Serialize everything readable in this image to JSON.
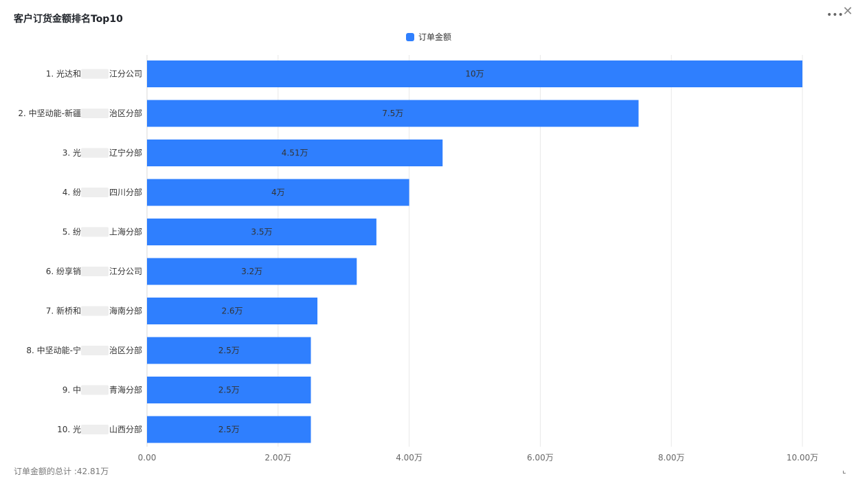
{
  "header": {
    "title": "客户订货金额排名Top10",
    "more_icon": "more-horizontal-icon",
    "close_icon": "close-icon"
  },
  "legend": {
    "label": "订单金额",
    "color": "#2f7ffe"
  },
  "footer": {
    "total_text": "订单金额的总计 :42.81万",
    "expand_icon": "expand-icon"
  },
  "colors": {
    "bar": "#2f7ffe",
    "grid": "#e8e8e8",
    "axis_text": "#666666"
  },
  "chart_data": {
    "type": "bar",
    "orientation": "horizontal",
    "title": "客户订货金额排名Top10",
    "series": [
      {
        "name": "订单金额",
        "values": [
          10,
          7.5,
          4.51,
          4,
          3.5,
          3.2,
          2.6,
          2.5,
          2.5,
          2.5
        ]
      }
    ],
    "categories": [
      {
        "prefix": "1. 光达和",
        "suffix": "江分公司"
      },
      {
        "prefix": "2. 中坚动能-新疆",
        "suffix": "治区分部"
      },
      {
        "prefix": "3. 光",
        "suffix": "辽宁分部"
      },
      {
        "prefix": "4. 纷",
        "suffix": "四川分部"
      },
      {
        "prefix": "5. 纷",
        "suffix": "上海分部"
      },
      {
        "prefix": "6. 纷享销",
        "suffix": "江分公司"
      },
      {
        "prefix": "7. 新桥和",
        "suffix": "海南分部"
      },
      {
        "prefix": "8. 中坚动能-宁",
        "suffix": "治区分部"
      },
      {
        "prefix": "9. 中",
        "suffix": "青海分部"
      },
      {
        "prefix": "10. 光",
        "suffix": "山西分部"
      }
    ],
    "data_labels": [
      "10万",
      "7.5万",
      "4.51万",
      "4万",
      "3.5万",
      "3.2万",
      "2.6万",
      "2.5万",
      "2.5万",
      "2.5万"
    ],
    "xlim": [
      0,
      10
    ],
    "x_ticks": [
      0,
      2,
      4,
      6,
      8,
      10
    ],
    "x_tick_labels": [
      "0.00",
      "2.00万",
      "4.00万",
      "6.00万",
      "8.00万",
      "10.00万"
    ],
    "grid": true,
    "legend_position": "top-center"
  }
}
